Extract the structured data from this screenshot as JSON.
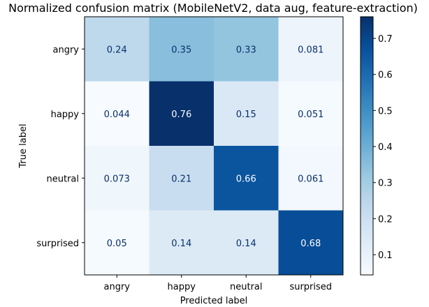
{
  "chart_data": {
    "type": "heatmap",
    "title": "Normalized confusion matrix (MobileNetV2, data aug, feature-extraction)",
    "xlabel": "Predicted label",
    "ylabel": "True label",
    "x_categories": [
      "angry",
      "happy",
      "neutral",
      "surprised"
    ],
    "y_categories": [
      "angry",
      "happy",
      "neutral",
      "surprised"
    ],
    "values": [
      [
        0.24,
        0.35,
        0.33,
        0.081
      ],
      [
        0.044,
        0.76,
        0.15,
        0.051
      ],
      [
        0.073,
        0.21,
        0.66,
        0.061
      ],
      [
        0.05,
        0.14,
        0.14,
        0.68
      ]
    ],
    "value_labels": [
      [
        "0.24",
        "0.35",
        "0.33",
        "0.081"
      ],
      [
        "0.044",
        "0.76",
        "0.15",
        "0.051"
      ],
      [
        "0.073",
        "0.21",
        "0.66",
        "0.061"
      ],
      [
        "0.05",
        "0.14",
        "0.14",
        "0.68"
      ]
    ],
    "colormap": "Blues",
    "colorbar": {
      "range": [
        0.044,
        0.76
      ],
      "ticks": [
        0.1,
        0.2,
        0.3,
        0.4,
        0.5,
        0.6,
        0.7
      ],
      "tick_labels": [
        "0.1",
        "0.2",
        "0.3",
        "0.4",
        "0.5",
        "0.6",
        "0.7"
      ]
    },
    "grid": false
  }
}
